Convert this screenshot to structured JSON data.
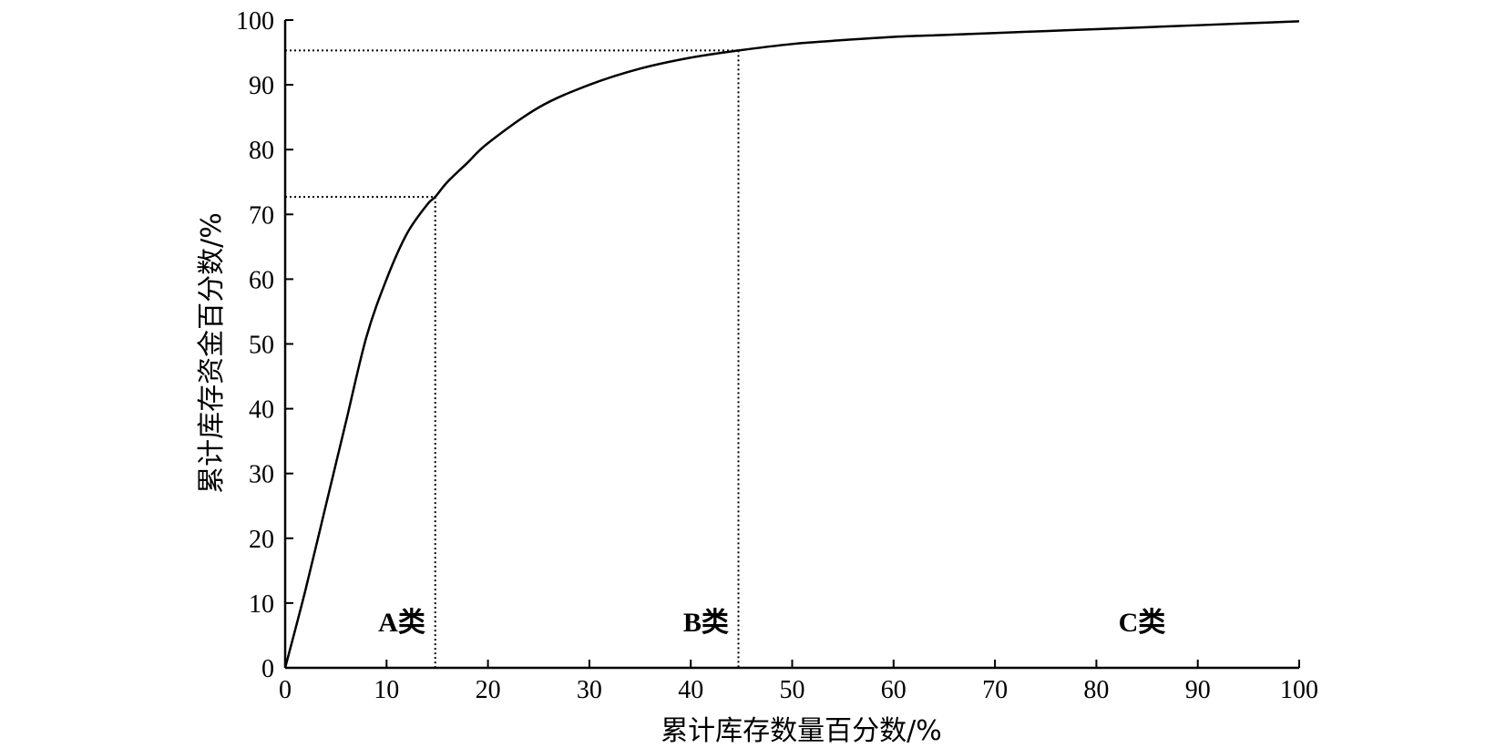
{
  "chart_data": {
    "type": "line",
    "title": "",
    "xlabel": "累计库存数量百分数/%",
    "ylabel": "累计库存资金百分数/%",
    "xlim": [
      0,
      100
    ],
    "ylim": [
      0,
      100
    ],
    "xticks": [
      0,
      10,
      20,
      30,
      40,
      50,
      60,
      70,
      80,
      90,
      100
    ],
    "yticks": [
      0,
      10,
      20,
      30,
      40,
      50,
      60,
      70,
      80,
      90,
      100
    ],
    "grid": false,
    "legend": "none",
    "series": [
      {
        "x": [
          0,
          2,
          4,
          6,
          8,
          10,
          12,
          14,
          14.8,
          16,
          18,
          20,
          25,
          30,
          35,
          40,
          44.7,
          50,
          55,
          60,
          65,
          70,
          75,
          80,
          85,
          90,
          95,
          100
        ],
        "y": [
          0,
          12,
          25,
          38,
          51,
          60,
          67,
          71.5,
          72.7,
          75,
          78,
          81,
          86.5,
          90,
          92.5,
          94.2,
          95.3,
          96.3,
          96.9,
          97.4,
          97.7,
          98.0,
          98.3,
          98.6,
          98.9,
          99.2,
          99.5,
          99.8
        ]
      }
    ],
    "reference_lines": [
      {
        "x": 14.8,
        "y": 72.7
      },
      {
        "x": 44.7,
        "y": 95.3
      }
    ],
    "annotations": [
      {
        "text": "A类",
        "x": 11.5,
        "y": 7
      },
      {
        "text": "B类",
        "x": 41.5,
        "y": 7
      },
      {
        "text": "C类",
        "x": 84.5,
        "y": 7
      }
    ],
    "colors": {
      "line": "#000000",
      "reference": "#000000"
    }
  }
}
